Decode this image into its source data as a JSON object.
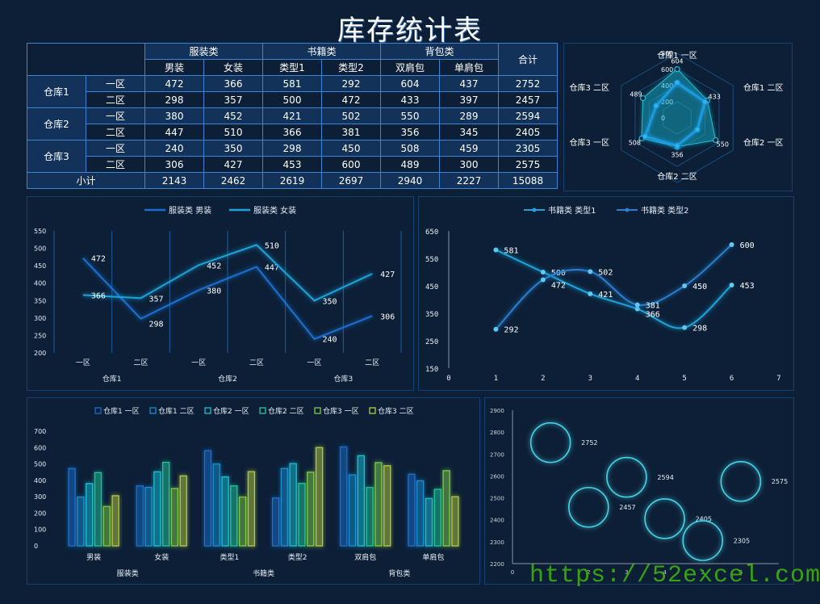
{
  "title": "库存统计表",
  "table": {
    "group_headers": [
      {
        "label": "服装类"
      },
      {
        "label": "书籍类"
      },
      {
        "label": "背包类"
      }
    ],
    "total_header": "合计",
    "sub_headers": [
      "男装",
      "女装",
      "类型1",
      "类型2",
      "双肩包",
      "单肩包"
    ],
    "warehouses": [
      "仓库1",
      "仓库2",
      "仓库3"
    ],
    "zones": [
      "一区",
      "二区"
    ],
    "rows": [
      {
        "warehouse": "仓库1",
        "zone": "一区",
        "values": [
          472,
          366,
          581,
          292,
          604,
          437
        ],
        "total": 2752
      },
      {
        "warehouse": "仓库1",
        "zone": "二区",
        "values": [
          298,
          357,
          500,
          472,
          433,
          397
        ],
        "total": 2457
      },
      {
        "warehouse": "仓库2",
        "zone": "一区",
        "values": [
          380,
          452,
          421,
          502,
          550,
          289
        ],
        "total": 2594
      },
      {
        "warehouse": "仓库2",
        "zone": "二区",
        "values": [
          447,
          510,
          366,
          381,
          356,
          345
        ],
        "total": 2405
      },
      {
        "warehouse": "仓库3",
        "zone": "一区",
        "values": [
          240,
          350,
          298,
          450,
          508,
          459
        ],
        "total": 2305
      },
      {
        "warehouse": "仓库3",
        "zone": "二区",
        "values": [
          306,
          427,
          453,
          600,
          489,
          300
        ],
        "total": 2575
      }
    ],
    "subtotal_label": "小计",
    "subtotals": [
      2143,
      2462,
      2619,
      2697,
      2940,
      2227
    ],
    "grand_total": 15088
  },
  "colors": {
    "background": "#0c1f36",
    "table_border": "#3d84d4",
    "series_blue": "#1a6fd1",
    "series_cyan": "#1fa3dc",
    "bar_colors": [
      "#1a6fd1",
      "#1a8ed4",
      "#1cc1d6",
      "#1ec79a",
      "#7ccb4c",
      "#b5cc3f"
    ],
    "bubble": "#46d3e6",
    "watermark": "#3aa10f"
  },
  "chart_data": [
    {
      "type": "radar",
      "title": "",
      "axes": [
        "仓库1 一区",
        "仓库1 二区",
        "仓库2 一区",
        "仓库2 二区",
        "仓库3 一区",
        "仓库3 二区"
      ],
      "rlim": [
        0,
        800
      ],
      "rticks": [
        "0",
        "200",
        "400",
        "600",
        "800"
      ],
      "series": [
        {
          "name": "背包类 双肩包",
          "values": [
            604,
            433,
            550,
            356,
            508,
            489
          ],
          "labeled": true
        },
        {
          "name": "背包类 单肩包",
          "values": [
            437,
            397,
            289,
            345,
            459,
            300
          ],
          "labeled": false
        }
      ]
    },
    {
      "type": "line",
      "title": "",
      "legend": [
        "服装类 男装",
        "服装类 女装"
      ],
      "categories": [
        "一区",
        "二区",
        "一区",
        "二区",
        "一区",
        "二区"
      ],
      "group_labels": [
        "仓库1",
        "仓库2",
        "仓库3"
      ],
      "yticks": [
        "200",
        "250",
        "300",
        "350",
        "400",
        "450",
        "500",
        "550"
      ],
      "ylim": [
        200,
        550
      ],
      "series": [
        {
          "name": "服装类 男装",
          "values": [
            472,
            298,
            380,
            447,
            240,
            306
          ]
        },
        {
          "name": "服装类 女装",
          "values": [
            366,
            357,
            452,
            510,
            350,
            427
          ]
        }
      ]
    },
    {
      "type": "scatter",
      "title": "",
      "legend": [
        "书籍类 类型1",
        "书籍类 类型2"
      ],
      "xlim": [
        0,
        7
      ],
      "xticks": [
        "0",
        "1",
        "2",
        "3",
        "4",
        "5",
        "6",
        "7"
      ],
      "ylim": [
        150,
        650
      ],
      "yticks": [
        "150",
        "250",
        "350",
        "450",
        "550",
        "650"
      ],
      "series": [
        {
          "name": "书籍类 类型1",
          "x": [
            1,
            2,
            3,
            4,
            5,
            6
          ],
          "values": [
            581,
            500,
            421,
            366,
            298,
            453
          ]
        },
        {
          "name": "书籍类 类型2",
          "x": [
            1,
            2,
            3,
            4,
            5,
            6
          ],
          "values": [
            292,
            472,
            502,
            381,
            450,
            600
          ]
        }
      ]
    },
    {
      "type": "bar",
      "title": "",
      "legend": [
        "仓库1 一区",
        "仓库1 二区",
        "仓库2 一区",
        "仓库2 二区",
        "仓库3 一区",
        "仓库3 二区"
      ],
      "categories": [
        "男装",
        "女装",
        "类型1",
        "类型2",
        "双肩包",
        "单肩包"
      ],
      "group_labels": [
        "服装类",
        "书籍类",
        "背包类"
      ],
      "ylim": [
        0,
        700
      ],
      "yticks": [
        "0",
        "100",
        "200",
        "300",
        "400",
        "500",
        "600",
        "700"
      ],
      "series": [
        {
          "name": "仓库1 一区",
          "values": [
            472,
            366,
            581,
            292,
            604,
            437
          ]
        },
        {
          "name": "仓库1 二区",
          "values": [
            298,
            357,
            500,
            472,
            433,
            397
          ]
        },
        {
          "name": "仓库2 一区",
          "values": [
            380,
            452,
            421,
            502,
            550,
            289
          ]
        },
        {
          "name": "仓库2 二区",
          "values": [
            447,
            510,
            366,
            381,
            356,
            345
          ]
        },
        {
          "name": "仓库3 一区",
          "values": [
            240,
            350,
            298,
            450,
            508,
            459
          ]
        },
        {
          "name": "仓库3 二区",
          "values": [
            306,
            427,
            453,
            600,
            489,
            300
          ]
        }
      ]
    },
    {
      "type": "bubble",
      "title": "",
      "xlim": [
        0,
        7
      ],
      "xticks": [
        "0",
        "1",
        "2",
        "3",
        "4",
        "5",
        "6",
        "7"
      ],
      "ylim": [
        2200,
        2900
      ],
      "yticks": [
        "2200",
        "2300",
        "2400",
        "2500",
        "2600",
        "2700",
        "2800",
        "2900"
      ],
      "x": [
        1,
        2,
        3,
        4,
        5,
        6
      ],
      "values": [
        2752,
        2457,
        2594,
        2405,
        2305,
        2575
      ]
    }
  ],
  "watermark": "https://52excel.com"
}
